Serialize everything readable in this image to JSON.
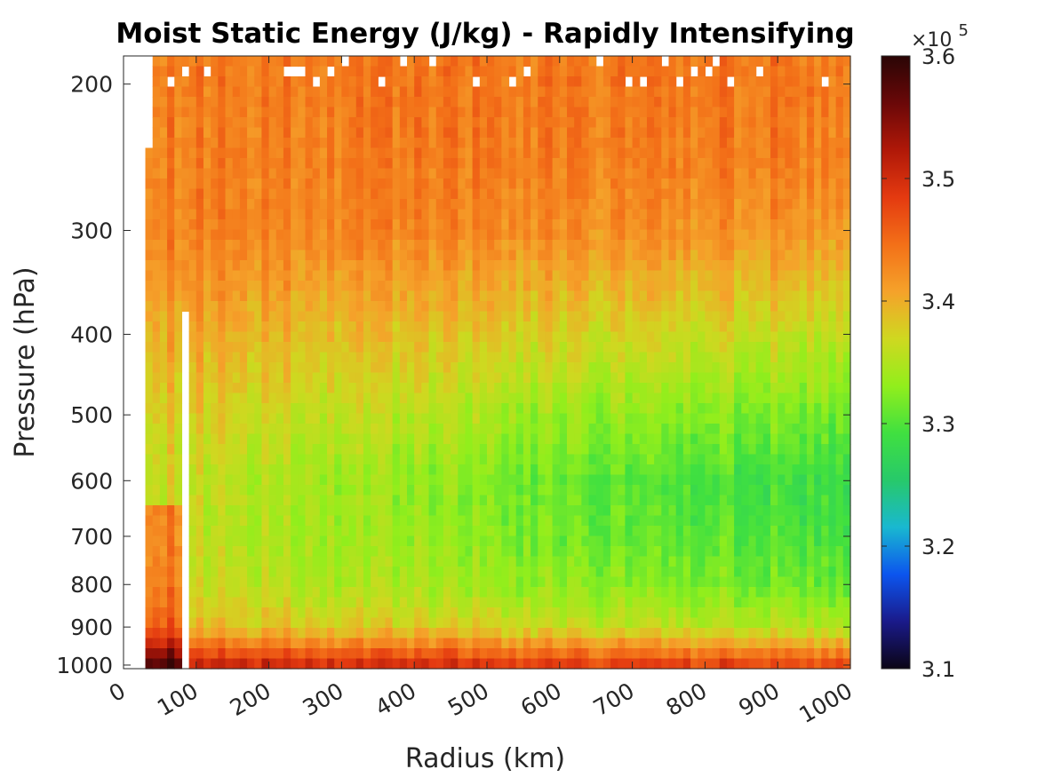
{
  "chart_data": {
    "type": "heatmap",
    "title": "Moist Static Energy (J/kg) - Rapidly Intensifying",
    "xlabel": "Radius (km)",
    "ylabel": "Pressure (hPa)",
    "xlim": [
      0,
      1000
    ],
    "ylim": [
      1010,
      185
    ],
    "y_scale": "log",
    "x_ticks": [
      "0",
      "100",
      "200",
      "300",
      "400",
      "500",
      "600",
      "700",
      "800",
      "900",
      "1000"
    ],
    "y_ticks": [
      "200",
      "300",
      "400",
      "500",
      "600",
      "700",
      "800",
      "900",
      "1000"
    ],
    "colorbar": {
      "range": [
        3.1,
        3.6
      ],
      "ticks": [
        "3.1",
        "3.2",
        "3.3",
        "3.4",
        "3.5",
        "3.6"
      ],
      "multiplier_base": "×10",
      "multiplier_exponent": "5",
      "colormap": [
        "#0b0515",
        "#1a1a8a",
        "#0c55ee",
        "#19b8d0",
        "#27c96a",
        "#40e040",
        "#92ee1c",
        "#cfd820",
        "#f5a22a",
        "#f37018",
        "#e43a10",
        "#b01808",
        "#6a0808",
        "#2a0505"
      ],
      "grid": false
    },
    "field_description_levels": {
      "pressure_hPa": [
        200,
        300,
        400,
        500,
        600,
        700,
        800,
        900,
        1000
      ],
      "typical_mse_1e5": [
        3.44,
        3.43,
        3.39,
        3.36,
        3.34,
        3.34,
        3.35,
        3.38,
        3.5
      ]
    },
    "radial_trend": {
      "radius_km": [
        50,
        300,
        600,
        900
      ],
      "mid_level_mse_1e5": [
        3.4,
        3.37,
        3.34,
        3.32
      ]
    }
  }
}
